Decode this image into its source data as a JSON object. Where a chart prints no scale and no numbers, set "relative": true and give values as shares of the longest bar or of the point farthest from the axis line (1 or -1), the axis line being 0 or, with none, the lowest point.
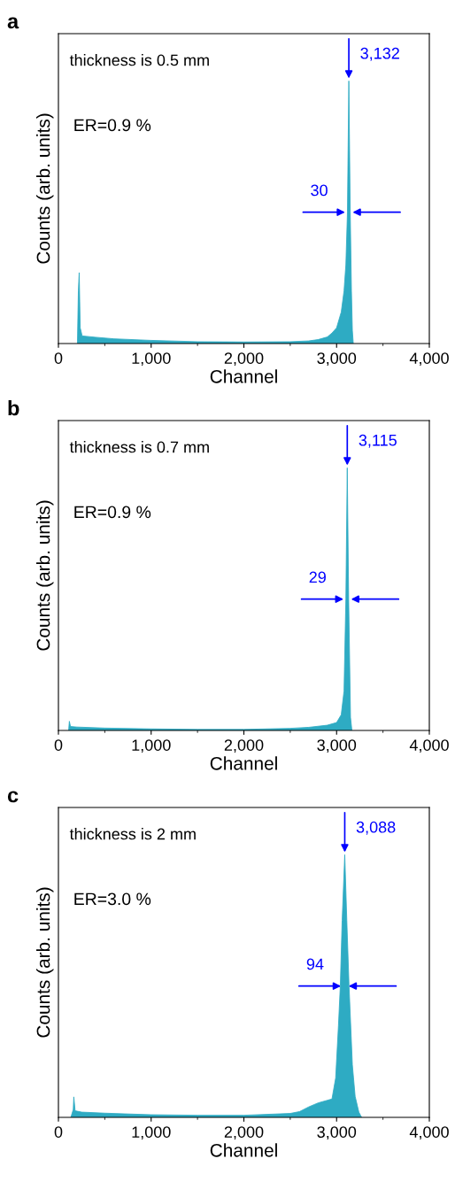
{
  "chart_data": [
    {
      "type": "area",
      "title": "a",
      "xlabel": "Channel",
      "ylabel": "Counts (arb. units)",
      "relative": true,
      "color": "#2eabc3",
      "xlim": [
        0,
        4000
      ],
      "xticks": [
        0,
        {
          "value": 1000,
          "label": "1,000"
        },
        {
          "value": 2000,
          "label": "2,000"
        },
        {
          "value": 3000,
          "label": "3,000"
        },
        {
          "value": 4000,
          "label": "4,000"
        }
      ],
      "x": [
        205,
        215,
        224,
        235,
        256,
        400,
        600,
        1000,
        1500,
        2000,
        2500,
        2700,
        2800,
        2900,
        2950,
        3000,
        3050,
        3080,
        3100,
        3117,
        3132,
        3147,
        3160,
        3170,
        3180
      ],
      "values": [
        0,
        0.2,
        0.27,
        0.06,
        0.029,
        0.024,
        0.018,
        0.012,
        0.007,
        0.006,
        0.007,
        0.01,
        0.015,
        0.025,
        0.04,
        0.06,
        0.12,
        0.2,
        0.3,
        0.5,
        1,
        0.5,
        0.2,
        0.05,
        0
      ],
      "annotations": [
        "thickness is 0.5 mm",
        "ER=0.9 %",
        {
          "text": "3,132",
          "x": 3132,
          "y": 1
        },
        {
          "text": "30",
          "x": 3132,
          "y": 0.5
        }
      ]
    },
    {
      "type": "area",
      "title": "b",
      "xlabel": "Channel",
      "ylabel": "Counts (arb. units)",
      "relative": true,
      "color": "#2eabc3",
      "xlim": [
        0,
        4000
      ],
      "xticks": [
        0,
        {
          "value": 1000,
          "label": "1,000"
        },
        {
          "value": 2000,
          "label": "2,000"
        },
        {
          "value": 3000,
          "label": "3,000"
        },
        {
          "value": 4000,
          "label": "4,000"
        }
      ],
      "x": [
        110,
        118,
        130,
        200,
        500,
        1000,
        1500,
        2000,
        2500,
        2700,
        2900,
        3000,
        3050,
        3080,
        3100,
        3115,
        3130,
        3150,
        3165
      ],
      "values": [
        0,
        0.035,
        0.015,
        0.013,
        0.009,
        0.006,
        0.004,
        0.004,
        0.008,
        0.012,
        0.02,
        0.03,
        0.06,
        0.15,
        0.5,
        1,
        0.5,
        0.05,
        0
      ],
      "annotations": [
        "thickness is 0.7 mm",
        "ER=0.9 %",
        {
          "text": "3,115",
          "x": 3115,
          "y": 1
        },
        {
          "text": "29",
          "x": 3115,
          "y": 0.5
        }
      ]
    },
    {
      "type": "area",
      "title": "c",
      "xlabel": "Channel",
      "ylabel": "Counts (arb. units)",
      "relative": true,
      "color": "#2eabc3",
      "xlim": [
        0,
        4000
      ],
      "xticks": [
        0,
        {
          "value": 1000,
          "label": "1,000"
        },
        {
          "value": 2000,
          "label": "2,000"
        },
        {
          "value": 3000,
          "label": "3,000"
        },
        {
          "value": 4000,
          "label": "4,000"
        }
      ],
      "x": [
        134,
        160,
        166,
        180,
        250,
        500,
        1000,
        1500,
        2000,
        2500,
        2600,
        2700,
        2800,
        2900,
        2950,
        2990,
        3020,
        3040,
        3060,
        3088,
        3110,
        3134,
        3170,
        3200,
        3240,
        3270
      ],
      "values": [
        0,
        0.03,
        0.078,
        0.025,
        0.02,
        0.016,
        0.01,
        0.008,
        0.008,
        0.015,
        0.022,
        0.04,
        0.055,
        0.065,
        0.07,
        0.15,
        0.35,
        0.5,
        0.75,
        1,
        0.75,
        0.5,
        0.2,
        0.08,
        0.02,
        0
      ],
      "annotations": [
        "thickness is 2 mm",
        "ER=3.0 %",
        {
          "text": "3,088",
          "x": 3088,
          "y": 1
        },
        {
          "text": "94",
          "x": 3088,
          "y": 0.5
        }
      ]
    }
  ]
}
